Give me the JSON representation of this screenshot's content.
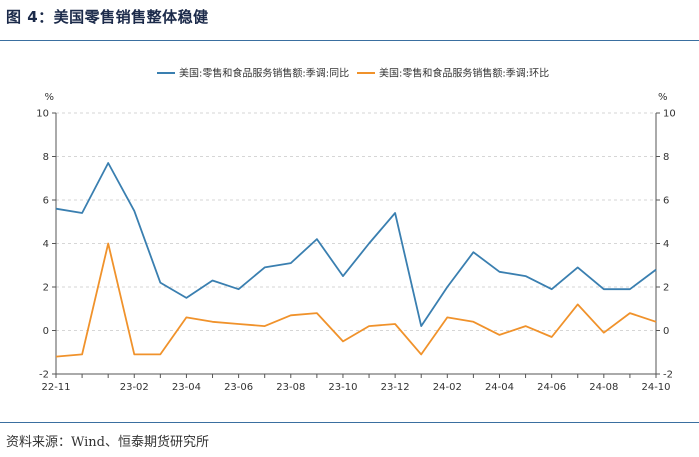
{
  "header": {
    "title": "图 4：美国零售销售整体稳健"
  },
  "footer": {
    "source": "资料来源：Wind、恒泰期货研究所"
  },
  "chart_data": {
    "type": "line",
    "y_unit_left": "%",
    "y_unit_right": "%",
    "ylim": [
      -2,
      10
    ],
    "yticks": [
      -2,
      0,
      2,
      4,
      6,
      8,
      10
    ],
    "grid": true,
    "legend_position": "top-center",
    "colors": {
      "yoy": "#3a7fb0",
      "mom": "#f0922b"
    },
    "x": [
      "22-11",
      "22-12",
      "23-01",
      "23-02",
      "23-03",
      "23-04",
      "23-05",
      "23-06",
      "23-07",
      "23-08",
      "23-09",
      "23-10",
      "23-11",
      "23-12",
      "24-01",
      "24-02",
      "24-03",
      "24-04",
      "24-05",
      "24-06",
      "24-07",
      "24-08",
      "24-09",
      "24-10"
    ],
    "xtick_labels": [
      "22-11",
      "23-02",
      "23-04",
      "23-06",
      "23-08",
      "23-10",
      "23-12",
      "24-02",
      "24-04",
      "24-06",
      "24-08",
      "24-10"
    ],
    "series": [
      {
        "name": "美国:零售和食品服务销售额:季调:同比",
        "color": "#3a7fb0",
        "values": [
          5.6,
          5.4,
          7.7,
          5.5,
          2.2,
          1.5,
          2.3,
          1.9,
          2.9,
          3.1,
          4.2,
          2.5,
          4.0,
          5.4,
          0.2,
          2.0,
          3.6,
          2.7,
          2.5,
          1.9,
          2.9,
          1.9,
          1.9,
          2.8
        ]
      },
      {
        "name": "美国:零售和食品服务销售额:季调:环比",
        "color": "#f0922b",
        "values": [
          -1.2,
          -1.1,
          4.0,
          -1.1,
          -1.1,
          0.6,
          0.4,
          0.3,
          0.2,
          0.7,
          0.8,
          -0.5,
          0.2,
          0.3,
          -1.1,
          0.6,
          0.4,
          -0.2,
          0.2,
          -0.3,
          1.2,
          -0.1,
          0.8,
          0.4
        ]
      }
    ]
  }
}
